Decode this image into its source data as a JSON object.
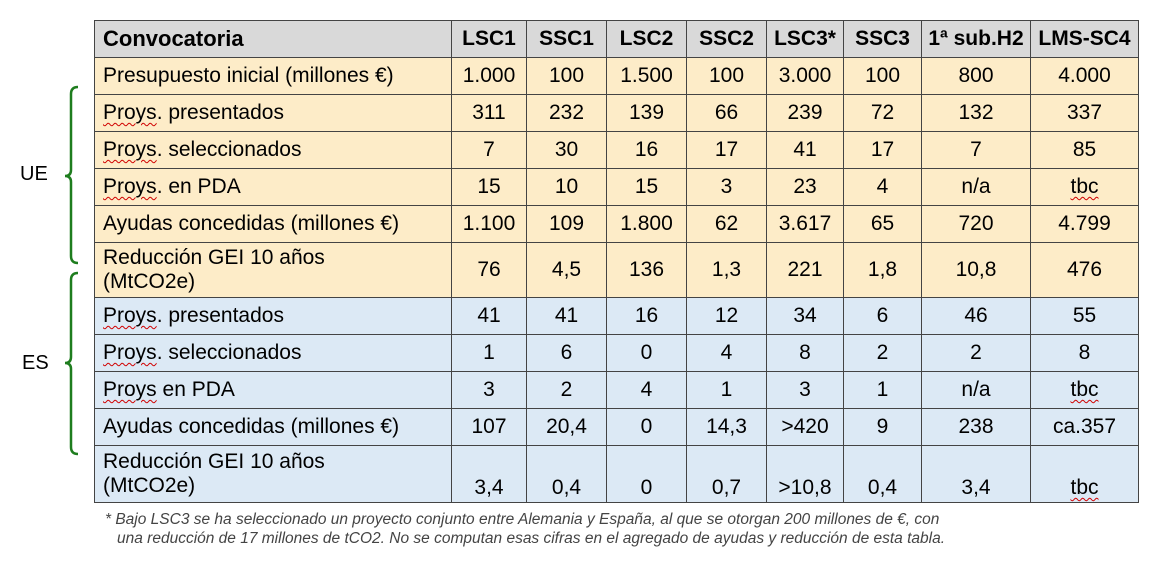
{
  "groups": {
    "ue": "UE",
    "es": "ES"
  },
  "header": [
    "Convocatoria",
    "LSC1",
    "SSC1",
    "LSC2",
    "SSC2",
    "LSC3*",
    "SSC3",
    "1ª sub.H2",
    "LMS-SC4"
  ],
  "budget_row": {
    "label": "Presupuesto inicial (millones €)",
    "values": [
      "1.000",
      "100",
      "1.500",
      "100",
      "3.000",
      "100",
      "800",
      "4.000"
    ]
  },
  "ue_rows": [
    {
      "label_word": "Proys",
      "label_rest": ". presentados",
      "values": [
        "311",
        "232",
        "139",
        "66",
        "239",
        "72",
        "132",
        "337"
      ]
    },
    {
      "label_word": "Proys",
      "label_rest": ". seleccionados",
      "values": [
        "7",
        "30",
        "16",
        "17",
        "41",
        "17",
        "7",
        "85"
      ]
    },
    {
      "label_word": "Proys",
      "label_rest": ". en PDA",
      "values": [
        "15",
        "10",
        "15",
        "3",
        "23",
        "4",
        "n/a",
        "tbc"
      ]
    },
    {
      "label_word": "",
      "label_rest": "Ayudas concedidas (millones €)",
      "values": [
        "1.100",
        "109",
        "1.800",
        "62",
        "3.617",
        "65",
        "720",
        "4.799"
      ]
    }
  ],
  "ue_ghg": {
    "label_line1": "Reducción GEI 10 años",
    "label_line2": "(MtCO2e)",
    "values": [
      "76",
      "4,5",
      "136",
      "1,3",
      "221",
      "1,8",
      "10,8",
      "476"
    ]
  },
  "es_rows": [
    {
      "label_word": "Proys",
      "label_rest": ". presentados",
      "values": [
        "41",
        "41",
        "16",
        "12",
        "34",
        "6",
        "46",
        "55"
      ]
    },
    {
      "label_word": "Proys",
      "label_rest": ". seleccionados",
      "values": [
        "1",
        "6",
        "0",
        "4",
        "8",
        "2",
        "2",
        "8"
      ]
    },
    {
      "label_word": "Proys",
      "label_rest": " en PDA",
      "values": [
        "3",
        "2",
        "4",
        "1",
        "3",
        "1",
        "n/a",
        "tbc"
      ]
    },
    {
      "label_word": "",
      "label_rest": "Ayudas concedidas (millones €)",
      "values": [
        "107",
        "20,4",
        "0",
        "14,3",
        ">420",
        "9",
        "238",
        "ca.357"
      ]
    }
  ],
  "es_ghg": {
    "label_line1": "Reducción GEI 10 años",
    "label_line2": "(MtCO2e)",
    "values": [
      "3,4",
      "0,4",
      "0",
      "0,7",
      ">10,8",
      "0,4",
      "3,4",
      "tbc"
    ]
  },
  "footnote": {
    "line1": "* Bajo LSC3 se ha seleccionado un proyecto conjunto entre Alemania y España, al que se otorgan 200 millones de €, con",
    "line2": "una reducción de 17 millones de tCO2. No se computan esas cifras en el agregado de ayudas y reducción de esta tabla."
  }
}
